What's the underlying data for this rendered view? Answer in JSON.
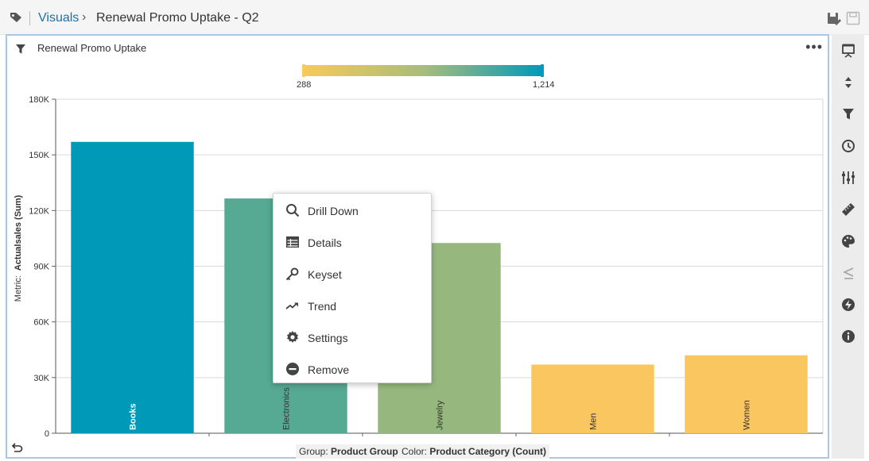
{
  "breadcrumb": {
    "root": "Visuals",
    "current": "Renewal Promo Uptake - Q2"
  },
  "panel": {
    "title": "Renewal Promo Uptake",
    "legend": {
      "min_label": "288",
      "max_label": "1,214",
      "colors": [
        "#f8c95b",
        "#0099bb"
      ]
    },
    "footer": {
      "group_label": "Group:",
      "group_value": "Product Group",
      "color_label": "Color:",
      "color_value": "Product Category (Count)"
    }
  },
  "chart_data": {
    "type": "bar",
    "categories": [
      "Books",
      "Electronics",
      "Jewelry",
      "Men",
      "Women"
    ],
    "values": [
      157000,
      126500,
      102500,
      37000,
      42000
    ],
    "colors": [
      "#0099b8",
      "#56a993",
      "#96b87e",
      "#fac65f",
      "#fac65f"
    ],
    "ylabel_prefix": "Metric:",
    "ylabel_value": "Actualsales (Sum)",
    "ylim": [
      0,
      180000
    ],
    "yticks": [
      "0",
      "30K",
      "60K",
      "90K",
      "120K",
      "150K",
      "180K"
    ],
    "grid": true
  },
  "context_menu": {
    "items": [
      {
        "label": "Drill Down",
        "icon": "search-icon"
      },
      {
        "label": "Details",
        "icon": "table-icon"
      },
      {
        "label": "Keyset",
        "icon": "key-icon"
      },
      {
        "label": "Trend",
        "icon": "trend-icon"
      },
      {
        "label": "Settings",
        "icon": "gear-icon"
      },
      {
        "label": "Remove",
        "icon": "minus-circle-icon"
      }
    ]
  },
  "sidebar": {
    "icons": [
      "presentation-icon",
      "sort-icon",
      "filter-icon",
      "clock-icon",
      "sliders-icon",
      "ruler-icon",
      "palette-icon",
      "less-equal-icon",
      "bolt-icon",
      "info-icon"
    ]
  }
}
